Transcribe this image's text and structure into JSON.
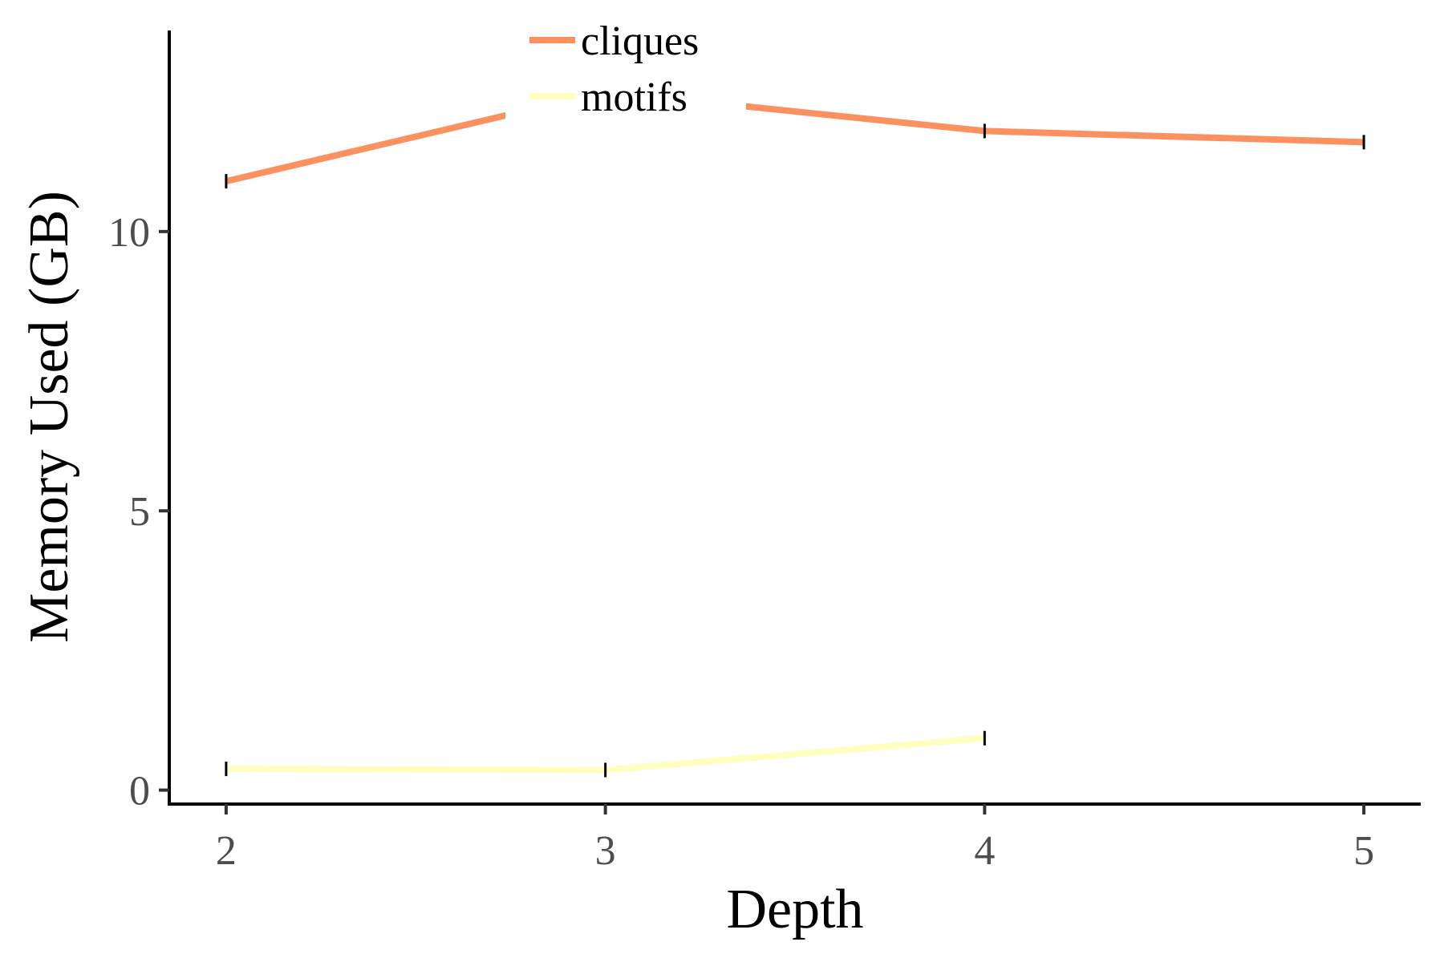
{
  "chart_data": {
    "type": "line",
    "title": "",
    "xlabel": "Depth",
    "ylabel": "Memory Used (GB)",
    "x": [
      2,
      3,
      4,
      5
    ],
    "x_ticks": [
      "2",
      "3",
      "4",
      "5"
    ],
    "y_ticks": [
      "0",
      "5",
      "10"
    ],
    "y_tick_values": [
      0,
      5,
      10
    ],
    "xlim": [
      1.85,
      5.15
    ],
    "ylim": [
      -0.25,
      13.6
    ],
    "grid": false,
    "legend_position": "top-center",
    "series": [
      {
        "name": "cliques",
        "color": "#fc9160",
        "values": [
          10.9,
          12.5,
          11.8,
          11.6
        ]
      },
      {
        "name": "motifs",
        "color": "#ffffbf",
        "values": [
          0.38,
          0.36,
          0.93,
          null
        ]
      }
    ]
  }
}
